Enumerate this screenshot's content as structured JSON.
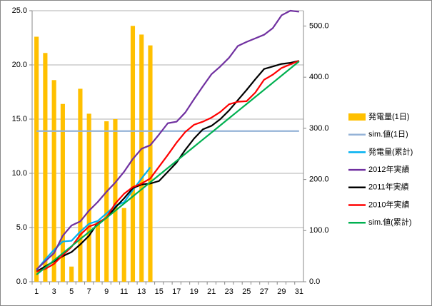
{
  "chart_data": {
    "type": "combo",
    "legend": "right",
    "grid": true,
    "categories": [
      1,
      null,
      3,
      null,
      5,
      null,
      7,
      null,
      9,
      null,
      11,
      null,
      13,
      null,
      15,
      null,
      17,
      null,
      19,
      null,
      21,
      null,
      23,
      null,
      25,
      null,
      27,
      null,
      29,
      null,
      31
    ],
    "ylim": [
      0,
      25
    ],
    "yticks": [
      {
        "value": 0,
        "label": "0.0"
      },
      {
        "value": 5,
        "label": "5.0"
      },
      {
        "value": 10,
        "label": "10.0"
      },
      {
        "value": 15,
        "label": "15.0"
      },
      {
        "value": 20,
        "label": "20.0"
      },
      {
        "value": 25,
        "label": "25.0"
      }
    ],
    "y2lim": [
      0,
      530
    ],
    "y2ticks": [
      {
        "value": 0,
        "label": "0.0"
      },
      {
        "value": 100,
        "label": "100.0"
      },
      {
        "value": 200,
        "label": "200.0"
      },
      {
        "value": 300,
        "label": "300.0"
      },
      {
        "value": 400,
        "label": "400.0"
      },
      {
        "value": 500,
        "label": "500.0"
      }
    ],
    "series": [
      {
        "name": "発電量(1日)",
        "type": "bar",
        "color": "#ffc000",
        "values": [
          22.6,
          21.1,
          18.6,
          16.4,
          1.4,
          17.8,
          15.5,
          5.5,
          14.8,
          15.0,
          6.8,
          23.6,
          22.8,
          21.8,
          null,
          null,
          null,
          null,
          null,
          null,
          null,
          null,
          null,
          null,
          null,
          null,
          null,
          null,
          null,
          null,
          null
        ]
      },
      {
        "name": "sim.値(1日)",
        "type": "line",
        "color": "#95b3d7",
        "values": [
          13.9,
          13.9,
          13.9,
          13.9,
          13.9,
          13.9,
          13.9,
          13.9,
          13.9,
          13.9,
          13.9,
          13.9,
          13.9,
          13.9,
          13.9,
          13.9,
          13.9,
          13.9,
          13.9,
          13.9,
          13.9,
          13.9,
          13.9,
          13.9,
          13.9,
          13.9,
          13.9,
          13.9,
          13.9,
          13.9,
          13.9
        ]
      },
      {
        "name": "発電量(累計)",
        "type": "line",
        "axis": "y2",
        "color": "#00b0f0",
        "values": [
          22.6,
          43.7,
          62.3,
          78.7,
          80.1,
          97.9,
          113.4,
          118.9,
          133.7,
          148.7,
          155.5,
          179.1,
          201.9,
          223.7,
          null,
          null,
          null,
          null,
          null,
          null,
          null,
          null,
          null,
          null,
          null,
          null,
          null,
          null,
          null,
          null,
          null
        ]
      },
      {
        "name": "2012年実績",
        "type": "line",
        "axis": "y2",
        "color": "#7030a0",
        "values": [
          24,
          40,
          56,
          90,
          110,
          118,
          139,
          156,
          176,
          194,
          215,
          240,
          260,
          267,
          288,
          310,
          313,
          331,
          357,
          382,
          406,
          421,
          438,
          461,
          469,
          476,
          483,
          496,
          521,
          530,
          528
        ]
      },
      {
        "name": "2011年実績",
        "type": "line",
        "axis": "y2",
        "color": "#000000",
        "values": [
          20,
          30,
          40,
          50,
          58,
          73,
          90,
          115,
          125,
          145,
          163,
          183,
          190,
          192,
          197,
          215,
          233,
          258,
          280,
          298,
          305,
          318,
          335,
          355,
          375,
          396,
          416,
          421,
          426,
          428,
          432
        ]
      },
      {
        "name": "2010年実績",
        "type": "line",
        "axis": "y2",
        "color": "#ff0000",
        "values": [
          20,
          25,
          35,
          52,
          68,
          92,
          108,
          114,
          126,
          153,
          172,
          185,
          192,
          202,
          225,
          248,
          272,
          293,
          307,
          313,
          321,
          332,
          347,
          352,
          353,
          370,
          395,
          405,
          418,
          425,
          432
        ]
      },
      {
        "name": "sim.値(累計)",
        "type": "line",
        "axis": "y2",
        "color": "#00b050",
        "values": [
          13.9,
          27.8,
          41.7,
          55.6,
          69.5,
          83.4,
          97.3,
          111.2,
          125.1,
          139.0,
          152.9,
          166.8,
          180.7,
          194.6,
          208.5,
          222.4,
          236.3,
          250.2,
          264.1,
          278.0,
          291.9,
          305.8,
          319.7,
          333.6,
          347.5,
          361.4,
          375.3,
          389.2,
          403.1,
          417.0,
          430.9
        ]
      }
    ]
  }
}
